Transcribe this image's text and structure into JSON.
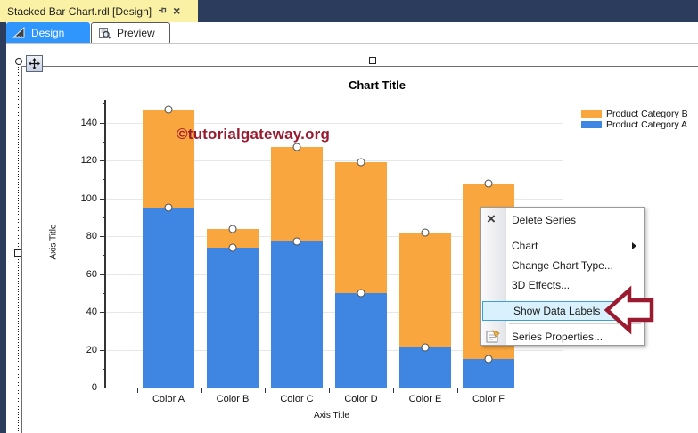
{
  "window": {
    "document_tab": {
      "title": "Stacked Bar Chart.rdl [Design]"
    },
    "view_tabs": [
      {
        "label": "Design",
        "active": true
      },
      {
        "label": "Preview",
        "active": false
      }
    ]
  },
  "watermark": {
    "text": "©tutorialgateway.org",
    "color": "#9A1B30"
  },
  "chart_data": {
    "type": "bar",
    "stacked": true,
    "title": "Chart Title",
    "xlabel": "Axis Title",
    "ylabel": "Axis Title",
    "categories": [
      "Color A",
      "Color B",
      "Color C",
      "Color D",
      "Color E",
      "Color F"
    ],
    "series": [
      {
        "name": "Product Category B",
        "color": "#F9A63F",
        "values": [
          52,
          10,
          50,
          69,
          61,
          93
        ]
      },
      {
        "name": "Product Category A",
        "color": "#3F86E2",
        "values": [
          95,
          74,
          77,
          50,
          21,
          15
        ]
      }
    ],
    "stack_totals": [
      147,
      84,
      127,
      119,
      82,
      108
    ],
    "ylim": [
      0,
      150
    ],
    "yticks": [
      0,
      20,
      40,
      60,
      80,
      100,
      120,
      140
    ],
    "grid": true,
    "point_markers": true,
    "legend_position": "top-right"
  },
  "context_menu": {
    "items": [
      {
        "label": "Delete Series",
        "icon": "delete-x-icon"
      },
      {
        "separator": true
      },
      {
        "label": "Chart",
        "submenu": true
      },
      {
        "label": "Change Chart Type..."
      },
      {
        "label": "3D Effects..."
      },
      {
        "separator": true
      },
      {
        "label": "Show Data Labels",
        "highlighted": true
      },
      {
        "separator": true
      },
      {
        "label": "Series Properties...",
        "icon": "properties-icon"
      }
    ]
  },
  "annotation_arrow": {
    "points_to": "Show Data Labels",
    "color": "#9A1B30"
  },
  "colors": {
    "shell_navy": "#2C3C5C",
    "active_doc_tab": "#FBF1A5",
    "design_tab_blue": "#2F96FE",
    "menu_highlight_bg": "#D8F1FC",
    "menu_highlight_border": "#3DA0D4",
    "gridline": "#E7E7E7",
    "axis": "#333333"
  }
}
